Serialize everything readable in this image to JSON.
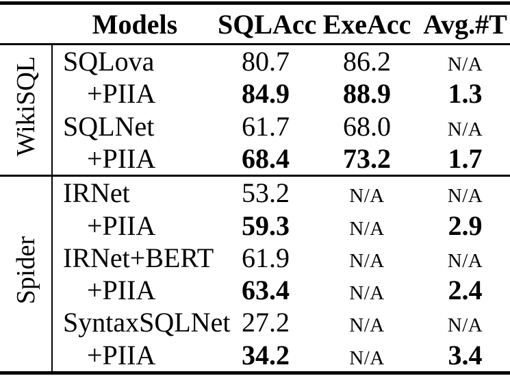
{
  "table": {
    "headers": {
      "models": "Models",
      "sqlacc": "SQLAcc",
      "exeacc": "ExeAcc",
      "avgt": "Avg.#T"
    },
    "na_label": "N/A",
    "groups": [
      {
        "label": "WikiSQL",
        "rows": [
          {
            "model": "SQLova",
            "indent": false,
            "bold": false,
            "sqlacc": "80.7",
            "exeacc": "86.2",
            "avgt": "N/A"
          },
          {
            "model": "+PIIA",
            "indent": true,
            "bold": true,
            "sqlacc": "84.9",
            "exeacc": "88.9",
            "avgt": "1.3"
          },
          {
            "model": "SQLNet",
            "indent": false,
            "bold": false,
            "sqlacc": "61.7",
            "exeacc": "68.0",
            "avgt": "N/A"
          },
          {
            "model": "+PIIA",
            "indent": true,
            "bold": true,
            "sqlacc": "68.4",
            "exeacc": "73.2",
            "avgt": "1.7"
          }
        ]
      },
      {
        "label": "Spider",
        "rows": [
          {
            "model": "IRNet",
            "indent": false,
            "bold": false,
            "sqlacc": "53.2",
            "exeacc": "N/A",
            "avgt": "N/A"
          },
          {
            "model": "+PIIA",
            "indent": true,
            "bold": true,
            "sqlacc": "59.3",
            "exeacc": "N/A",
            "avgt": "2.9"
          },
          {
            "model": "IRNet+BERT",
            "indent": false,
            "bold": false,
            "sqlacc": "61.9",
            "exeacc": "N/A",
            "avgt": "N/A"
          },
          {
            "model": "+PIIA",
            "indent": true,
            "bold": true,
            "sqlacc": "63.4",
            "exeacc": "N/A",
            "avgt": "2.4"
          },
          {
            "model": "SyntaxSQLNet",
            "indent": false,
            "bold": false,
            "sqlacc": "27.2",
            "exeacc": "N/A",
            "avgt": "N/A"
          },
          {
            "model": "+PIIA",
            "indent": true,
            "bold": true,
            "sqlacc": "34.2",
            "exeacc": "N/A",
            "avgt": "3.4"
          }
        ]
      }
    ]
  },
  "colors": {
    "text": "#000000",
    "background": "#ffffff",
    "rule": "#000000"
  }
}
